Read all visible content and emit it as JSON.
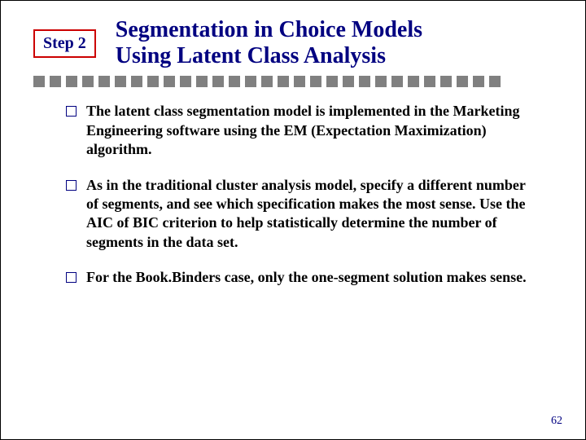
{
  "colors": {
    "navy": "#000080",
    "red": "#cc0000",
    "gray": "#808080",
    "black": "#000000"
  },
  "step": {
    "label": "Step 2",
    "border_color": "#cc0000",
    "text_color": "#000080",
    "font_size": 20
  },
  "title": {
    "line1": "Segmentation in Choice Models",
    "line2": "Using Latent Class Analysis",
    "color": "#000080",
    "font_size": 28
  },
  "divider": {
    "dot_count": 29,
    "dot_color": "#808080",
    "dot_size": 14,
    "dot_gap": 6
  },
  "bullets": {
    "marker_color": "#000080",
    "text_color": "#000000",
    "font_size": 18,
    "items": [
      "The latent class segmentation model is implemented in the Marketing Engineering software using the EM (Expectation Maximization) algorithm.",
      "As in the traditional cluster analysis model, specify a different number of segments, and see which specification makes the most sense. Use the AIC of BIC criterion to help statistically determine the number of segments in the data set.",
      "For the Book.Binders case, only the one-segment solution makes sense."
    ]
  },
  "page_number": "62",
  "page_number_color": "#000080"
}
